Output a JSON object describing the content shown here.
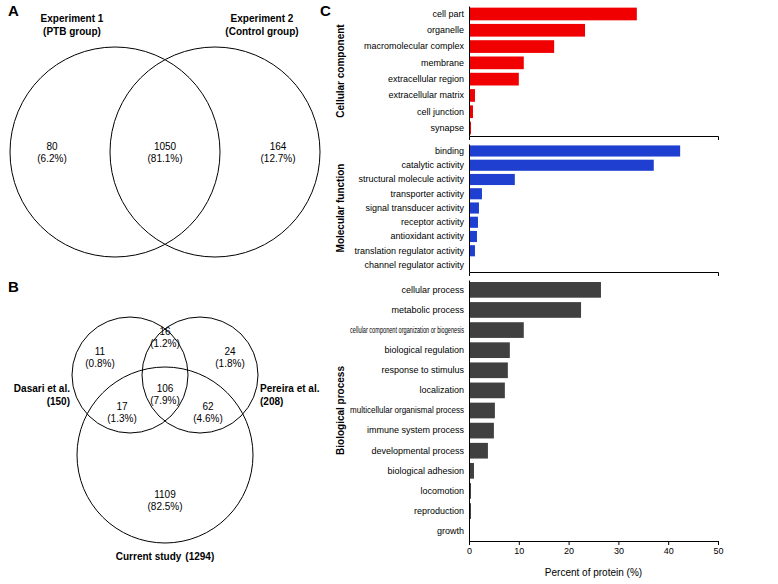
{
  "chart_data": [
    {
      "type": "venn",
      "title": "A",
      "sets": [
        {
          "name": "Experiment 1",
          "label": "(PTB group)"
        },
        {
          "name": "Experiment 2",
          "label": "(Control group)"
        }
      ],
      "regions": [
        {
          "sets": [
            "Experiment 1"
          ],
          "value": 80,
          "label": "(6.2%)"
        },
        {
          "sets": [
            "Experiment 1",
            "Experiment 2"
          ],
          "value": 1050,
          "label": "(81.1%)"
        },
        {
          "sets": [
            "Experiment 2"
          ],
          "value": 164,
          "label": "(12.7%)"
        }
      ]
    },
    {
      "type": "venn",
      "title": "B",
      "sets": [
        {
          "name": "Dasari et al.",
          "label": "(150)"
        },
        {
          "name": "Pereira et al.",
          "label": "(208)"
        },
        {
          "name": "Current study",
          "label": "(1294)"
        }
      ],
      "regions": [
        {
          "sets": [
            "Dasari et al."
          ],
          "value": 11,
          "label": "(0.8%)"
        },
        {
          "sets": [
            "Dasari et al.",
            "Pereira et al."
          ],
          "value": 16,
          "label": "(1.2%)"
        },
        {
          "sets": [
            "Pereira et al."
          ],
          "value": 24,
          "label": "(1.8%)"
        },
        {
          "sets": [
            "Dasari et al.",
            "Current study"
          ],
          "value": 17,
          "label": "(1.3%)"
        },
        {
          "sets": [
            "Dasari et al.",
            "Pereira et al.",
            "Current study"
          ],
          "value": 106,
          "label": "(7.9%)"
        },
        {
          "sets": [
            "Pereira et al.",
            "Current study"
          ],
          "value": 62,
          "label": "(4.6%)"
        },
        {
          "sets": [
            "Current study"
          ],
          "value": 1109,
          "label": "(82.5%)"
        }
      ]
    },
    {
      "type": "bar",
      "orientation": "horizontal",
      "title": "C",
      "ylabel": "Cellular component",
      "categories": [
        "cell part",
        "organelle",
        "macromolecular complex",
        "membrane",
        "extracellular region",
        "extracellular matrix",
        "cell junction",
        "synapse"
      ],
      "values": [
        33.7,
        23.3,
        17.1,
        11.0,
        10.0,
        1.2,
        0.8,
        0.4
      ],
      "color": "#f00000",
      "xlim": [
        0,
        50
      ],
      "tick_labels": "y"
    },
    {
      "type": "bar",
      "orientation": "horizontal",
      "ylabel": "Molecular function",
      "categories": [
        "binding",
        "catalytic activity",
        "structural molecule activity",
        "transporter activity",
        "signal transducer activity",
        "receptor activity",
        "antioxidant activity",
        "translation regulator activity",
        "channel regulator activity"
      ],
      "values": [
        42.4,
        37.1,
        9.2,
        2.6,
        2.0,
        1.8,
        1.6,
        1.2,
        0.1
      ],
      "color": "#1f3fd0",
      "xlim": [
        0,
        50
      ],
      "tick_labels": "y"
    },
    {
      "type": "bar",
      "orientation": "horizontal",
      "ylabel": "Biological process",
      "xlabel": "Percent of protein (%)",
      "categories": [
        "cellular process",
        "metabolic process",
        "cellular component organization or biogenesis",
        "biological regulation",
        "response to stimulus",
        "localization",
        "multicellular organismal process",
        "immune system process",
        "developmental process",
        "biological adhesion",
        "locomotion",
        "reproduction",
        "growth"
      ],
      "values": [
        26.5,
        22.5,
        11.0,
        8.2,
        7.8,
        7.2,
        5.2,
        5.0,
        3.8,
        1.0,
        0.4,
        0.4,
        0.1
      ],
      "color": "#404040",
      "xlim": [
        0,
        50
      ],
      "xticks": [
        0,
        10,
        20,
        30,
        40,
        50
      ]
    }
  ]
}
